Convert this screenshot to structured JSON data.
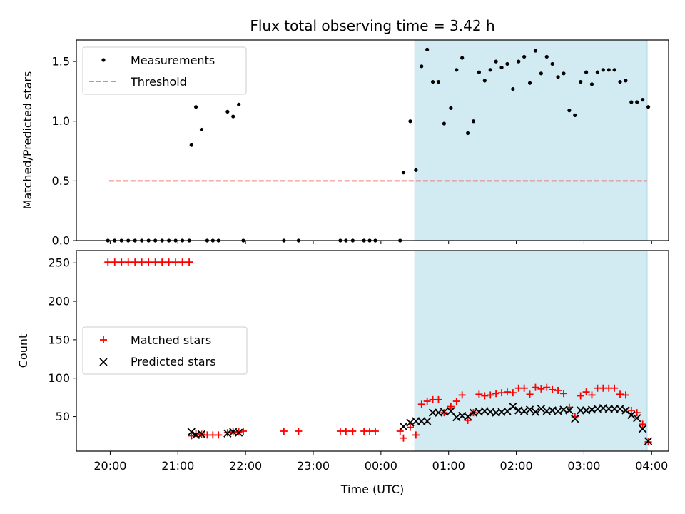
{
  "chart_data": [
    {
      "type": "scatter",
      "panel": "top",
      "title": "Flux total observing time = 3.42 h",
      "ylabel": "Matched/Predicted stars",
      "xlabel": "",
      "ylim": [
        0,
        1.68
      ],
      "yticks": [
        {
          "v": 0.0,
          "label": "0.0"
        },
        {
          "v": 0.5,
          "label": "0.5"
        },
        {
          "v": 1.0,
          "label": "1.0"
        },
        {
          "v": 1.5,
          "label": "1.5"
        }
      ],
      "legend": {
        "placement": "top-left",
        "entries": [
          {
            "key": "measure",
            "label": "Measurements"
          },
          {
            "key": "threshold",
            "label": "Threshold"
          }
        ]
      },
      "threshold": {
        "y": 0.5,
        "x_start": "19:59",
        "x_end": "03:56",
        "color": "#f08080"
      },
      "colors": {
        "measure": "#000000",
        "shade": "#add8e6"
      },
      "shade": {
        "x_start": "00:30",
        "x_end": "03:56"
      },
      "series": [
        {
          "key": "measure",
          "points": [
            [
              "19:58",
              0
            ],
            [
              "20:04",
              0
            ],
            [
              "20:10",
              0
            ],
            [
              "20:16",
              0
            ],
            [
              "20:22",
              0
            ],
            [
              "20:28",
              0
            ],
            [
              "20:34",
              0
            ],
            [
              "20:40",
              0
            ],
            [
              "20:46",
              0
            ],
            [
              "20:52",
              0
            ],
            [
              "20:58",
              0
            ],
            [
              "21:04",
              0
            ],
            [
              "21:10",
              0
            ],
            [
              "21:12",
              0.8
            ],
            [
              "21:16",
              1.12
            ],
            [
              "21:21",
              0.93
            ],
            [
              "21:26",
              0
            ],
            [
              "21:31",
              0
            ],
            [
              "21:36",
              0
            ],
            [
              "21:44",
              1.08
            ],
            [
              "21:49",
              1.04
            ],
            [
              "21:54",
              1.14
            ],
            [
              "21:58",
              0
            ],
            [
              "22:34",
              0
            ],
            [
              "22:47",
              0
            ],
            [
              "23:24",
              0
            ],
            [
              "23:29",
              0
            ],
            [
              "23:35",
              0
            ],
            [
              "23:45",
              0
            ],
            [
              "23:50",
              0
            ],
            [
              "23:55",
              0
            ],
            [
              "00:17",
              0
            ],
            [
              "00:20",
              0.57
            ],
            [
              "00:26",
              1.0
            ],
            [
              "00:31",
              0.59
            ],
            [
              "00:36",
              1.46
            ],
            [
              "00:41",
              1.6
            ],
            [
              "00:46",
              1.33
            ],
            [
              "00:51",
              1.33
            ],
            [
              "00:56",
              0.98
            ],
            [
              "01:02",
              1.11
            ],
            [
              "01:07",
              1.43
            ],
            [
              "01:12",
              1.53
            ],
            [
              "01:17",
              0.9
            ],
            [
              "01:22",
              1.0
            ],
            [
              "01:27",
              1.41
            ],
            [
              "01:32",
              1.34
            ],
            [
              "01:37",
              1.43
            ],
            [
              "01:42",
              1.5
            ],
            [
              "01:47",
              1.45
            ],
            [
              "01:52",
              1.48
            ],
            [
              "01:57",
              1.27
            ],
            [
              "02:02",
              1.5
            ],
            [
              "02:07",
              1.54
            ],
            [
              "02:12",
              1.32
            ],
            [
              "02:17",
              1.59
            ],
            [
              "02:22",
              1.4
            ],
            [
              "02:27",
              1.54
            ],
            [
              "02:32",
              1.48
            ],
            [
              "02:37",
              1.37
            ],
            [
              "02:42",
              1.4
            ],
            [
              "02:47",
              1.09
            ],
            [
              "02:52",
              1.05
            ],
            [
              "02:57",
              1.33
            ],
            [
              "03:02",
              1.41
            ],
            [
              "03:07",
              1.31
            ],
            [
              "03:12",
              1.41
            ],
            [
              "03:17",
              1.43
            ],
            [
              "03:22",
              1.43
            ],
            [
              "03:27",
              1.43
            ],
            [
              "03:32",
              1.33
            ],
            [
              "03:37",
              1.34
            ],
            [
              "03:42",
              1.16
            ],
            [
              "03:47",
              1.16
            ],
            [
              "03:52",
              1.18
            ],
            [
              "03:57",
              1.12
            ]
          ]
        }
      ]
    },
    {
      "type": "scatter",
      "panel": "bottom",
      "title": "",
      "ylabel": "Count",
      "xlabel": "Time (UTC)",
      "ylim": [
        5,
        266
      ],
      "yticks": [
        {
          "v": 50,
          "label": "50"
        },
        {
          "v": 100,
          "label": "100"
        },
        {
          "v": 150,
          "label": "150"
        },
        {
          "v": 200,
          "label": "200"
        },
        {
          "v": 250,
          "label": "250"
        }
      ],
      "xlim": [
        "19:30",
        "04:15"
      ],
      "xticks": [
        "20:00",
        "21:00",
        "22:00",
        "23:00",
        "00:00",
        "01:00",
        "02:00",
        "03:00",
        "04:00"
      ],
      "legend": {
        "placement": "center-left",
        "entries": [
          {
            "key": "matched",
            "label": "Matched stars"
          },
          {
            "key": "predicted",
            "label": "Predicted stars"
          }
        ]
      },
      "colors": {
        "matched": "#ff0000",
        "predicted": "#000000",
        "shade": "#add8e6"
      },
      "shade": {
        "x_start": "00:30",
        "x_end": "03:56"
      },
      "series": [
        {
          "key": "matched",
          "points": [
            [
              "19:58",
              251
            ],
            [
              "20:04",
              251
            ],
            [
              "20:10",
              251
            ],
            [
              "20:16",
              251
            ],
            [
              "20:22",
              251
            ],
            [
              "20:28",
              251
            ],
            [
              "20:34",
              251
            ],
            [
              "20:40",
              251
            ],
            [
              "20:46",
              251
            ],
            [
              "20:52",
              251
            ],
            [
              "20:58",
              251
            ],
            [
              "21:04",
              251
            ],
            [
              "21:10",
              251
            ],
            [
              "21:12",
              25
            ],
            [
              "21:16",
              28
            ],
            [
              "21:21",
              27
            ],
            [
              "21:26",
              26
            ],
            [
              "21:31",
              26
            ],
            [
              "21:36",
              26
            ],
            [
              "21:44",
              29
            ],
            [
              "21:49",
              30
            ],
            [
              "21:54",
              30
            ],
            [
              "21:58",
              31
            ],
            [
              "22:34",
              31
            ],
            [
              "22:47",
              31
            ],
            [
              "23:24",
              31
            ],
            [
              "23:29",
              31
            ],
            [
              "23:35",
              31
            ],
            [
              "23:45",
              31
            ],
            [
              "23:50",
              31
            ],
            [
              "23:55",
              31
            ],
            [
              "00:17",
              31
            ],
            [
              "00:20",
              22
            ],
            [
              "00:26",
              36
            ],
            [
              "00:31",
              26
            ],
            [
              "00:36",
              66
            ],
            [
              "00:41",
              70
            ],
            [
              "00:46",
              72
            ],
            [
              "00:51",
              72
            ],
            [
              "00:56",
              55
            ],
            [
              "01:02",
              63
            ],
            [
              "01:07",
              70
            ],
            [
              "01:12",
              78
            ],
            [
              "01:17",
              45
            ],
            [
              "01:22",
              55
            ],
            [
              "01:27",
              79
            ],
            [
              "01:32",
              77
            ],
            [
              "01:37",
              78
            ],
            [
              "01:42",
              80
            ],
            [
              "01:47",
              81
            ],
            [
              "01:52",
              82
            ],
            [
              "01:57",
              81
            ],
            [
              "02:02",
              87
            ],
            [
              "02:07",
              87
            ],
            [
              "02:12",
              79
            ],
            [
              "02:17",
              88
            ],
            [
              "02:22",
              86
            ],
            [
              "02:27",
              88
            ],
            [
              "02:32",
              85
            ],
            [
              "02:37",
              84
            ],
            [
              "02:42",
              80
            ],
            [
              "02:47",
              62
            ],
            [
              "02:52",
              50
            ],
            [
              "02:57",
              77
            ],
            [
              "03:02",
              82
            ],
            [
              "03:07",
              78
            ],
            [
              "03:12",
              87
            ],
            [
              "03:17",
              87
            ],
            [
              "03:22",
              87
            ],
            [
              "03:27",
              87
            ],
            [
              "03:32",
              79
            ],
            [
              "03:37",
              78
            ],
            [
              "03:42",
              58
            ],
            [
              "03:47",
              55
            ],
            [
              "03:52",
              40
            ],
            [
              "03:57",
              17
            ]
          ]
        },
        {
          "key": "predicted",
          "points": [
            [
              "21:12",
              30
            ],
            [
              "21:16",
              26
            ],
            [
              "21:21",
              27
            ],
            [
              "21:44",
              28
            ],
            [
              "21:49",
              30
            ],
            [
              "21:54",
              29
            ],
            [
              "00:20",
              37
            ],
            [
              "00:26",
              42
            ],
            [
              "00:31",
              44
            ],
            [
              "00:36",
              44
            ],
            [
              "00:41",
              44
            ],
            [
              "00:46",
              55
            ],
            [
              "00:51",
              55
            ],
            [
              "00:56",
              56
            ],
            [
              "01:02",
              57
            ],
            [
              "01:07",
              49
            ],
            [
              "01:12",
              51
            ],
            [
              "01:17",
              50
            ],
            [
              "01:22",
              55
            ],
            [
              "01:27",
              56
            ],
            [
              "01:32",
              57
            ],
            [
              "01:37",
              56
            ],
            [
              "01:42",
              55
            ],
            [
              "01:47",
              56
            ],
            [
              "01:52",
              57
            ],
            [
              "01:57",
              63
            ],
            [
              "02:02",
              58
            ],
            [
              "02:07",
              57
            ],
            [
              "02:12",
              59
            ],
            [
              "02:17",
              56
            ],
            [
              "02:22",
              60
            ],
            [
              "02:27",
              57
            ],
            [
              "02:32",
              58
            ],
            [
              "02:37",
              57
            ],
            [
              "02:42",
              59
            ],
            [
              "02:47",
              58
            ],
            [
              "02:52",
              47
            ],
            [
              "02:57",
              58
            ],
            [
              "03:02",
              58
            ],
            [
              "03:07",
              59
            ],
            [
              "03:12",
              60
            ],
            [
              "03:17",
              61
            ],
            [
              "03:22",
              60
            ],
            [
              "03:27",
              60
            ],
            [
              "03:32",
              60
            ],
            [
              "03:37",
              58
            ],
            [
              "03:42",
              52
            ],
            [
              "03:47",
              48
            ],
            [
              "03:52",
              34
            ],
            [
              "03:57",
              18
            ]
          ]
        }
      ]
    }
  ]
}
